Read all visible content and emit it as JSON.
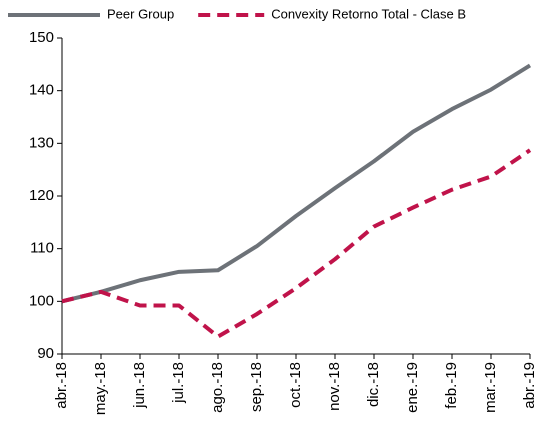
{
  "chart_data": {
    "type": "line",
    "categories": [
      "abr.-18",
      "may.-18",
      "jun.-18",
      "jul.-18",
      "ago.-18",
      "sep.-18",
      "oct.-18",
      "nov.-18",
      "dic.-18",
      "ene.-19",
      "feb.-19",
      "mar.-19",
      "abr.-19"
    ],
    "series": [
      {
        "name": "Peer Group",
        "color": "#6d7278",
        "dash": false,
        "values": [
          100,
          101.8,
          104,
          105.6,
          105.9,
          110.5,
          116.2,
          121.5,
          126.6,
          132.2,
          136.5,
          140.2,
          144.8
        ]
      },
      {
        "name": "Convexity Retorno Total - Clase B",
        "color": "#c0134a",
        "dash": true,
        "values": [
          100,
          101.8,
          99.2,
          99.2,
          93.3,
          97.6,
          102.5,
          108,
          114.2,
          117.8,
          121.2,
          123.7,
          128.7
        ]
      }
    ],
    "ylim": [
      90,
      150
    ],
    "yticks": [
      90,
      100,
      110,
      120,
      130,
      140,
      150
    ],
    "grid": false,
    "legend": "top"
  }
}
